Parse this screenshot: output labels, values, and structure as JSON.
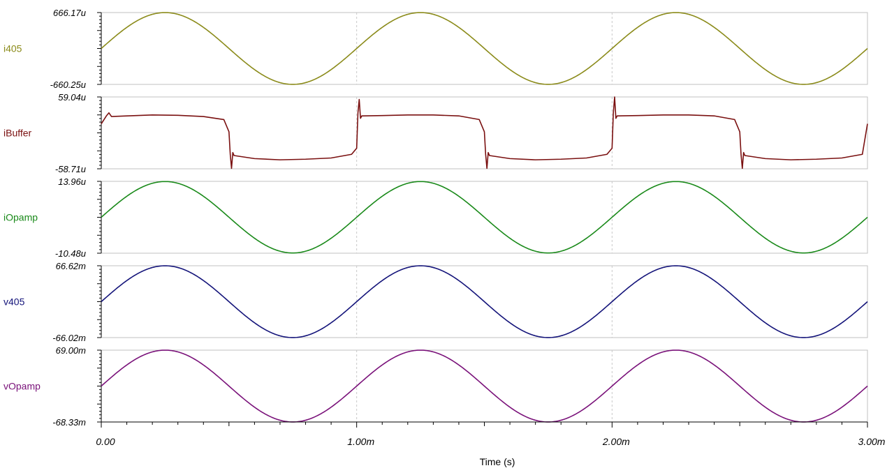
{
  "chart_data": {
    "type": "line",
    "xlabel": "Time (s)",
    "x_range": [
      0,
      0.003
    ],
    "x_ticks": [
      {
        "value": 0,
        "label": "0.00"
      },
      {
        "value": 0.001,
        "label": "1.00m"
      },
      {
        "value": 0.002,
        "label": "2.00m"
      },
      {
        "value": 0.003,
        "label": "3.00m"
      }
    ],
    "grid": "vertical dashed at major x ticks",
    "series": [
      {
        "name": "i405",
        "color": "#8b8b1a",
        "unit": "A",
        "ylim": [
          -0.00066025,
          0.00066617
        ],
        "ylim_labels": {
          "max": "666.17u",
          "min": "-660.25u"
        },
        "x": [
          0,
          0.000125,
          0.00025,
          0.000375,
          0.0005,
          0.000625,
          0.00075,
          0.000875,
          0.001,
          0.001125,
          0.00125,
          0.001375,
          0.0015,
          0.001625,
          0.00175,
          0.001875,
          0.002,
          0.002125,
          0.00225,
          0.002375,
          0.0025,
          0.002625,
          0.00275,
          0.002875,
          0.003
        ],
        "y": [
          3e-06,
          0.000471,
          0.000666,
          0.000471,
          3e-06,
          -0.000467,
          -0.00066,
          -0.000467,
          3e-06,
          0.000471,
          0.000666,
          0.000471,
          3e-06,
          -0.000467,
          -0.00066,
          -0.000467,
          3e-06,
          0.000471,
          0.000666,
          0.000471,
          3e-06,
          -0.000467,
          -0.00066,
          -0.000467,
          3e-06
        ]
      },
      {
        "name": "iBuffer",
        "color": "#7a1010",
        "unit": "A",
        "ylim": [
          -5.871e-05,
          5.904e-05
        ],
        "ylim_labels": {
          "max": "59.04u",
          "min": "-58.71u"
        },
        "x": [
          0,
          2e-05,
          3e-05,
          4e-05,
          0.0001,
          0.0002,
          0.0003,
          0.0004,
          0.00048,
          0.0005,
          0.000505,
          0.00051,
          0.000515,
          0.00052,
          0.0006,
          0.0007,
          0.0008,
          0.0009,
          0.00098,
          0.001,
          0.001005,
          0.00101,
          0.001015,
          0.00102,
          0.0011,
          0.0012,
          0.0013,
          0.0014,
          0.00148,
          0.0015,
          0.001505,
          0.00151,
          0.001515,
          0.00152,
          0.0016,
          0.0017,
          0.0018,
          0.0019,
          0.00198,
          0.002,
          0.002005,
          0.00201,
          0.002015,
          0.00202,
          0.0021,
          0.0022,
          0.0023,
          0.0024,
          0.00248,
          0.0025,
          0.002505,
          0.00251,
          0.002515,
          0.00252,
          0.0026,
          0.0027,
          0.0028,
          0.0029,
          0.00298,
          0.003
        ],
        "y": [
          1.5e-05,
          2.8e-05,
          3.3e-05,
          2.7e-05,
          2.8e-05,
          2.95e-05,
          2.9e-05,
          2.7e-05,
          2.2e-05,
          2e-06,
          -3.5e-05,
          -5.8e-05,
          -3.2e-05,
          -3.7e-05,
          -4.2e-05,
          -4.4e-05,
          -4.3e-05,
          -4.1e-05,
          -3.5e-05,
          -2.5e-05,
          3.3e-05,
          5.5e-05,
          2.4e-05,
          2.8e-05,
          2.85e-05,
          2.95e-05,
          2.95e-05,
          2.8e-05,
          2.2e-05,
          2e-06,
          -3.5e-05,
          -5.8e-05,
          -3.2e-05,
          -3.7e-05,
          -4.2e-05,
          -4.4e-05,
          -4.3e-05,
          -4.1e-05,
          -3.5e-05,
          -2.5e-05,
          3.3e-05,
          5.9e-05,
          2.4e-05,
          2.8e-05,
          2.85e-05,
          2.95e-05,
          2.95e-05,
          2.8e-05,
          2.2e-05,
          2e-06,
          -3.5e-05,
          -5.8e-05,
          -3.2e-05,
          -3.7e-05,
          -4.2e-05,
          -4.4e-05,
          -4.3e-05,
          -4.1e-05,
          -3.5e-05,
          1.5e-05
        ]
      },
      {
        "name": "iOpamp",
        "color": "#1a8a1a",
        "unit": "A",
        "ylim": [
          -1.048e-05,
          1.396e-05
        ],
        "ylim_labels": {
          "max": "13.96u",
          "min": "-10.48u"
        },
        "x": [
          0,
          0.000125,
          0.00025,
          0.000375,
          0.0005,
          0.000625,
          0.00075,
          0.000875,
          0.001,
          0.001125,
          0.00125,
          0.001375,
          0.0015,
          0.001625,
          0.00175,
          0.001875,
          0.002,
          0.002125,
          0.00225,
          0.002375,
          0.0025,
          0.002625,
          0.00275,
          0.002875,
          0.003
        ],
        "y": [
          1.5e-06,
          1.02e-05,
          1.39e-05,
          1.02e-05,
          1.5e-06,
          -7.2e-06,
          -1.04e-05,
          -7.2e-06,
          1.5e-06,
          1.02e-05,
          1.39e-05,
          1.02e-05,
          1.5e-06,
          -7.2e-06,
          -1.04e-05,
          -7.2e-06,
          1.5e-06,
          1.02e-05,
          1.39e-05,
          1.02e-05,
          1.5e-06,
          -7.2e-06,
          -1.04e-05,
          -7.2e-06,
          1.5e-06
        ]
      },
      {
        "name": "v405",
        "color": "#14147a",
        "unit": "V",
        "ylim": [
          -0.06602,
          0.06662
        ],
        "ylim_labels": {
          "max": "66.62m",
          "min": "-66.02m"
        },
        "x": [
          0,
          0.000125,
          0.00025,
          0.000375,
          0.0005,
          0.000625,
          0.00075,
          0.000875,
          0.001,
          0.001125,
          0.00125,
          0.001375,
          0.0015,
          0.001625,
          0.00175,
          0.001875,
          0.002,
          0.002125,
          0.00225,
          0.002375,
          0.0025,
          0.002625,
          0.00275,
          0.002875,
          0.003
        ],
        "y": [
          0.0003,
          0.0471,
          0.0666,
          0.0471,
          0.0003,
          -0.0466,
          -0.066,
          -0.0466,
          0.0003,
          0.0471,
          0.0666,
          0.0471,
          0.0003,
          -0.0466,
          -0.066,
          -0.0466,
          0.0003,
          0.0471,
          0.0666,
          0.0471,
          0.0003,
          -0.0466,
          -0.066,
          -0.0466,
          0.0003
        ]
      },
      {
        "name": "vOpamp",
        "color": "#7a127a",
        "unit": "V",
        "ylim": [
          -0.06833,
          0.069
        ],
        "ylim_labels": {
          "max": "69.00m",
          "min": "-68.33m"
        },
        "x": [
          0,
          0.000125,
          0.00025,
          0.000375,
          0.0005,
          0.000625,
          0.00075,
          0.000875,
          0.001,
          0.001125,
          0.00125,
          0.001375,
          0.0015,
          0.001625,
          0.00175,
          0.001875,
          0.002,
          0.002125,
          0.00225,
          0.002375,
          0.0025,
          0.002625,
          0.00275,
          0.002875,
          0.003
        ],
        "y": [
          0.0003,
          0.0488,
          0.069,
          0.0488,
          0.0003,
          -0.0483,
          -0.0683,
          -0.0483,
          0.0003,
          0.0488,
          0.069,
          0.0488,
          0.0003,
          -0.0483,
          -0.0683,
          -0.0483,
          0.0003,
          0.0488,
          0.069,
          0.0488,
          0.0003,
          -0.0483,
          -0.0683,
          -0.0483,
          0.0003
        ]
      }
    ]
  }
}
